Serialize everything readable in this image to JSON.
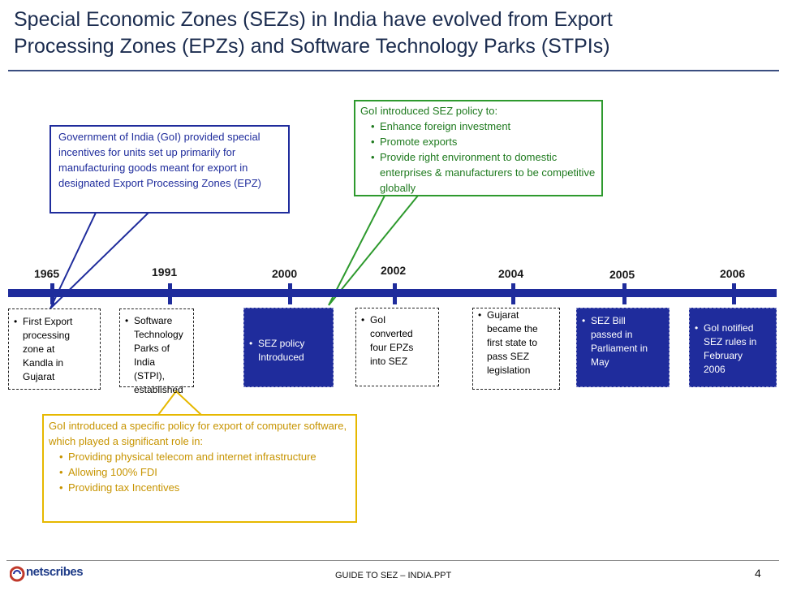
{
  "title": {
    "line1": "Special Economic Zones (SEZs) in India have evolved from Export",
    "line2": "Processing Zones (EPZs) and Software Technology Parks (STPIs)"
  },
  "timeline": {
    "years": [
      "1965",
      "1991",
      "2000",
      "2002",
      "2004",
      "2005",
      "2006"
    ],
    "events": [
      {
        "lines": [
          "First Export",
          "processing",
          "zone at",
          "Kandla in",
          "Gujarat"
        ],
        "style": "light"
      },
      {
        "lines": [
          "Software",
          "Technology",
          "Parks of India",
          "(STPI),",
          "established"
        ],
        "style": "light"
      },
      {
        "lines": [
          "SEZ policy",
          "Introduced"
        ],
        "style": "dark"
      },
      {
        "lines": [
          "GoI",
          "converted",
          "four EPZs",
          "into SEZ"
        ],
        "style": "light"
      },
      {
        "lines": [
          "Gujarat",
          "became the",
          "first state to",
          "pass SEZ",
          "legislation"
        ],
        "style": "light"
      },
      {
        "lines": [
          "SEZ Bill",
          "passed in",
          "Parliament in",
          "May"
        ],
        "style": "dark"
      },
      {
        "lines": [
          "GoI notified",
          "SEZ rules in",
          "February",
          "2006"
        ],
        "style": "dark"
      }
    ]
  },
  "callouts": {
    "epz": {
      "text": "Government of India (GoI)  provided special incentives for units set up primarily for manufacturing goods meant for export in designated Export Processing Zones (EPZ)"
    },
    "sez": {
      "heading": "GoI introduced SEZ policy to:",
      "bullets": [
        "Enhance foreign investment",
        "Promote exports",
        "Provide right environment  to domestic enterprises & manufacturers to be competitive globally"
      ]
    },
    "stpi": {
      "heading": "GoI introduced a specific policy for export of computer software, which played a significant role in:",
      "bullets": [
        "Providing physical telecom and internet infrastructure",
        "Allowing 100% FDI",
        "Providing tax Incentives"
      ]
    }
  },
  "footer": {
    "logo_text": "netscribes",
    "doc_name": "GUIDE TO SEZ – INDIA.PPT",
    "page_number": "4"
  },
  "colors": {
    "timeline": "#1f2c9c",
    "title": "#1b2c4f",
    "callout_blue": "#1f2c9c",
    "callout_green": "#2e9a2e",
    "callout_yellow": "#e6b800"
  }
}
